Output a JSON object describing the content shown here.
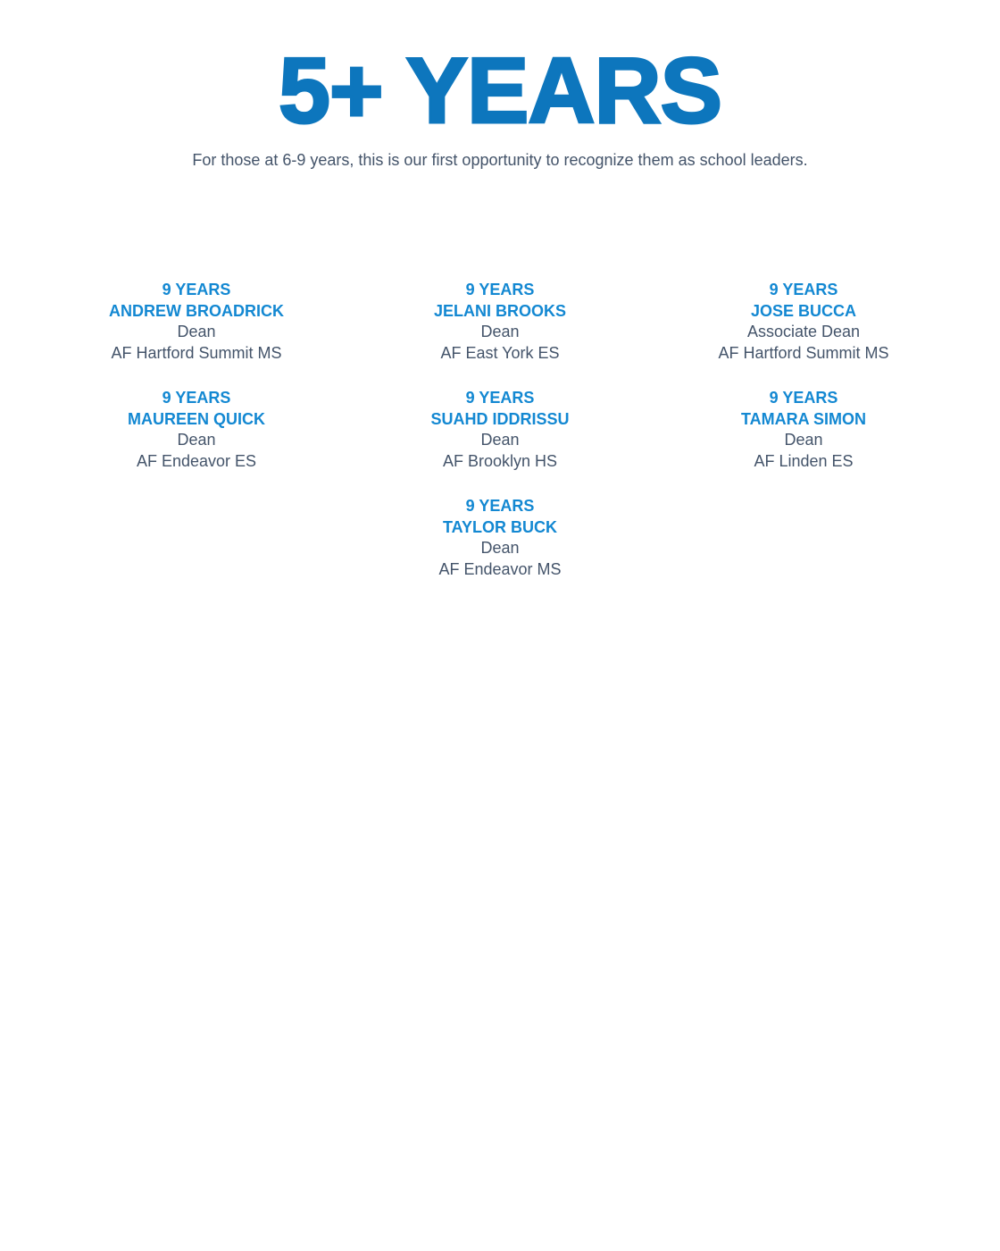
{
  "page": {
    "title": "5+ YEARS",
    "subtitle": "For those at 6-9 years, this is our first opportunity to recognize them as school leaders."
  },
  "colors": {
    "title_blue": "#0d76bd",
    "heading_blue": "#1388d2",
    "body_text": "#44546a",
    "background": "#ffffff"
  },
  "entries": [
    {
      "years": "9 YEARS",
      "name": "ANDREW BROADRICK",
      "role": "Dean",
      "school": "AF Hartford Summit MS"
    },
    {
      "years": "9 YEARS",
      "name": "JELANI BROOKS",
      "role": "Dean",
      "school": "AF East York ES"
    },
    {
      "years": "9 YEARS",
      "name": "JOSE BUCCA",
      "role": "Associate Dean",
      "school": "AF Hartford Summit MS"
    },
    {
      "years": "9 YEARS",
      "name": "MAUREEN QUICK",
      "role": "Dean",
      "school": "AF Endeavor ES"
    },
    {
      "years": "9 YEARS",
      "name": "SUAHD IDDRISSU",
      "role": "Dean",
      "school": "AF Brooklyn HS"
    },
    {
      "years": "9 YEARS",
      "name": "TAMARA SIMON",
      "role": "Dean",
      "school": "AF Linden ES"
    },
    {
      "years": "9 YEARS",
      "name": "TAYLOR BUCK",
      "role": "Dean",
      "school": "AF Endeavor MS"
    }
  ]
}
